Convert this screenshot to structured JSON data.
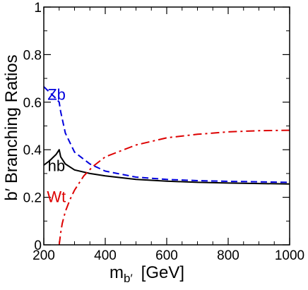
{
  "chart_data": {
    "type": "line",
    "xlabel_main": "m",
    "xlabel_sub": "b′",
    "xlabel_unit": "[GeV]",
    "ylabel": "b′ Branching Ratios",
    "xlim": [
      200,
      1000
    ],
    "ylim": [
      0,
      1
    ],
    "x_ticks": [
      200,
      400,
      600,
      800,
      1000
    ],
    "y_ticks": [
      0,
      0.2,
      0.4,
      0.6,
      0.8,
      1
    ],
    "y_tick_labels": [
      "0",
      "0.2",
      "0.4",
      "0.6",
      "0.8",
      "1"
    ],
    "grid": false,
    "series": [
      {
        "name": "Zb",
        "color": "#0000dd",
        "style": "dashed",
        "x": [
          200,
          220,
          240,
          250,
          255,
          270,
          300,
          350,
          400,
          500,
          600,
          700,
          800,
          900,
          1000
        ],
        "y": [
          0.665,
          0.64,
          0.615,
          0.6,
          0.56,
          0.47,
          0.39,
          0.34,
          0.31,
          0.285,
          0.275,
          0.27,
          0.267,
          0.265,
          0.263
        ]
      },
      {
        "name": "hb",
        "color": "#000000",
        "style": "solid",
        "x": [
          200,
          220,
          240,
          250,
          255,
          270,
          300,
          350,
          400,
          500,
          600,
          700,
          800,
          900,
          1000
        ],
        "y": [
          0.335,
          0.355,
          0.38,
          0.4,
          0.37,
          0.34,
          0.315,
          0.3,
          0.29,
          0.275,
          0.268,
          0.263,
          0.26,
          0.258,
          0.256
        ]
      },
      {
        "name": "Wt",
        "color": "#dd0000",
        "style": "dashdot",
        "x": [
          250,
          255,
          260,
          270,
          285,
          300,
          330,
          360,
          400,
          500,
          600,
          700,
          800,
          900,
          1000
        ],
        "y": [
          0,
          0.05,
          0.09,
          0.14,
          0.19,
          0.23,
          0.29,
          0.33,
          0.37,
          0.42,
          0.45,
          0.465,
          0.475,
          0.48,
          0.482
        ]
      }
    ],
    "annotations": [
      {
        "text": "Zb",
        "color": "#0000dd",
        "x": 212,
        "y": 0.61
      },
      {
        "text": "hb",
        "color": "#000000",
        "x": 213,
        "y": 0.31
      },
      {
        "text": "Wt",
        "color": "#dd0000",
        "x": 210,
        "y": 0.18
      }
    ]
  }
}
